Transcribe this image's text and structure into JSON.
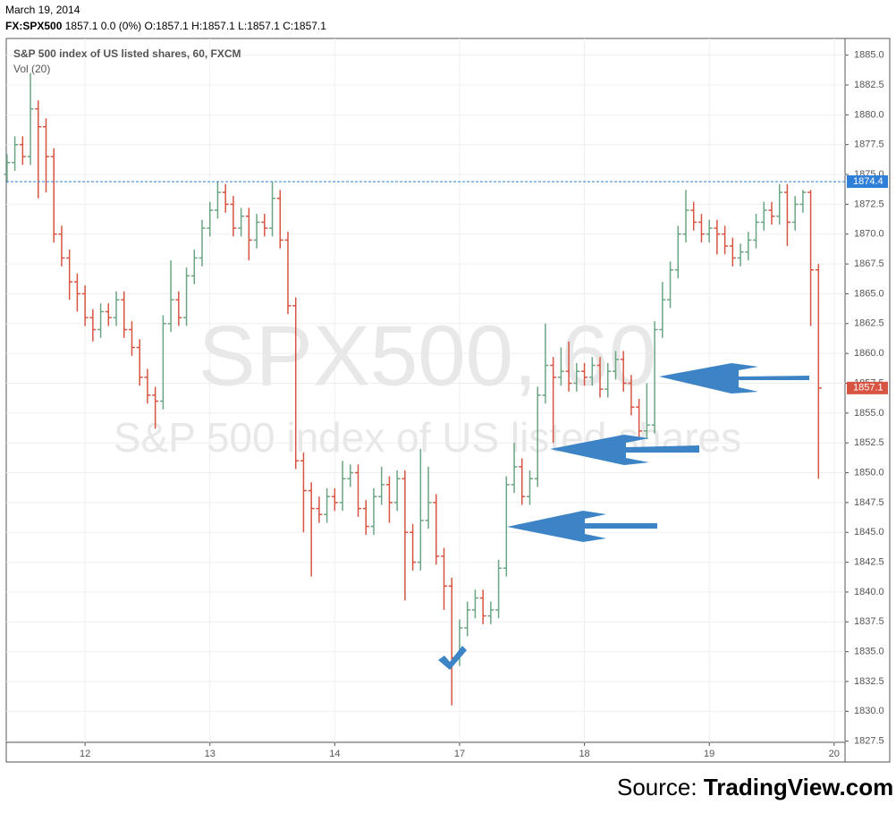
{
  "header": {
    "date": "March 19, 2014",
    "symbol": "FX:SPX500",
    "quote": "1857.1 0.0 (0%) O:1857.1 H:1857.1 L:1857.1 C:1857.1"
  },
  "source": {
    "prefix": "Source:",
    "site": "TradingView.com"
  },
  "chart_data": {
    "type": "ohlc",
    "title": "S&P 500 index of US listed shares, 60, FXCM",
    "indicator": "Vol (20)",
    "watermark": "SPX500, 60",
    "watermark_subtitle": "S&P 500 index of US listed shares",
    "up_color": "#6ba583",
    "down_color": "#d75442",
    "hline_color": "#2f7ed8",
    "hline": 1874.4,
    "grid": true,
    "x": [
      0,
      1,
      2,
      3,
      4,
      5,
      6,
      7,
      8,
      9,
      10,
      11,
      12,
      13,
      14,
      15,
      16,
      17,
      18,
      19,
      20,
      21,
      22,
      23,
      24,
      25,
      26,
      27,
      28,
      29,
      30,
      31,
      32,
      33,
      34,
      35,
      36,
      37,
      38,
      39,
      40,
      41,
      42,
      43,
      44,
      45,
      46,
      47,
      48,
      49,
      50,
      51,
      52,
      53,
      54,
      55,
      56,
      57,
      58,
      59,
      60,
      61,
      62,
      63,
      64,
      65,
      66,
      67,
      68,
      69,
      70,
      71,
      72,
      73,
      74,
      75,
      76,
      77,
      78,
      79,
      80,
      81,
      82,
      83,
      84,
      85,
      86,
      87,
      88,
      89,
      90,
      91,
      92,
      93,
      94,
      95,
      96,
      97,
      98,
      99,
      100,
      101,
      102,
      103,
      104
    ],
    "open": [
      1875.0,
      1876.0,
      1877.5,
      1876.5,
      1880.5,
      1879.0,
      1876.5,
      1870.0,
      1868.0,
      1866.0,
      1865.0,
      1863.0,
      1862.0,
      1863.5,
      1863.0,
      1864.5,
      1862.0,
      1860.5,
      1858.0,
      1856.5,
      1856.0,
      1862.5,
      1864.5,
      1863.0,
      1866.5,
      1868.0,
      1870.5,
      1872.0,
      1873.5,
      1872.5,
      1870.5,
      1871.5,
      1869.5,
      1871.0,
      1870.5,
      1873.0,
      1869.5,
      1864.0,
      1851.0,
      1848.5,
      1847.0,
      1846.5,
      1848.0,
      1847.5,
      1849.5,
      1850.0,
      1847.0,
      1845.5,
      1848.0,
      1849.0,
      1847.5,
      1849.5,
      1845.0,
      1842.5,
      1846.0,
      1847.5,
      1843.0,
      1840.5,
      1834.5,
      1837.0,
      1838.5,
      1839.5,
      1838.0,
      1838.5,
      1842.0,
      1849.0,
      1850.5,
      1848.0,
      1849.5,
      1856.5,
      1859.0,
      1858.0,
      1858.5,
      1857.5,
      1858.5,
      1858.0,
      1859.0,
      1857.0,
      1858.5,
      1859.5,
      1857.5,
      1855.5,
      1853.5,
      1854.0,
      1862.0,
      1864.5,
      1867.0,
      1870.0,
      1872.0,
      1871.0,
      1870.0,
      1870.5,
      1870.0,
      1869.0,
      1868.0,
      1868.5,
      1869.5,
      1871.0,
      1872.0,
      1871.5,
      1873.5,
      1871.0,
      1872.5,
      1873.5,
      1867.0
    ],
    "high": [
      1876.7,
      1878.2,
      1878.2,
      1883.5,
      1881.2,
      1879.7,
      1877.2,
      1870.7,
      1868.7,
      1866.7,
      1865.7,
      1863.7,
      1864.2,
      1864.2,
      1865.2,
      1865.2,
      1862.7,
      1861.2,
      1858.7,
      1857.2,
      1863.2,
      1867.8,
      1865.2,
      1867.2,
      1868.7,
      1871.2,
      1872.7,
      1874.4,
      1874.2,
      1873.2,
      1872.2,
      1872.2,
      1871.7,
      1871.7,
      1874.4,
      1873.7,
      1870.2,
      1864.7,
      1851.7,
      1849.2,
      1848.0,
      1848.7,
      1848.7,
      1851.0,
      1850.7,
      1850.7,
      1847.7,
      1848.7,
      1850.5,
      1849.7,
      1850.2,
      1850.2,
      1845.7,
      1852.0,
      1850.5,
      1848.2,
      1843.7,
      1841.2,
      1837.7,
      1839.2,
      1840.2,
      1840.2,
      1839.2,
      1842.7,
      1849.7,
      1852.5,
      1851.2,
      1850.2,
      1857.2,
      1862.5,
      1859.7,
      1860.5,
      1861.0,
      1859.2,
      1859.2,
      1859.7,
      1859.7,
      1859.2,
      1860.2,
      1860.2,
      1858.2,
      1856.2,
      1857.5,
      1862.7,
      1866.0,
      1867.7,
      1870.7,
      1873.7,
      1872.7,
      1871.7,
      1871.2,
      1871.2,
      1870.7,
      1869.7,
      1869.2,
      1870.2,
      1871.7,
      1872.7,
      1872.7,
      1874.2,
      1874.2,
      1873.2,
      1873.7,
      1873.7,
      1867.5
    ],
    "low": [
      1874.3,
      1875.3,
      1875.8,
      1875.8,
      1873.0,
      1873.5,
      1869.3,
      1867.3,
      1864.5,
      1863.5,
      1862.3,
      1861.0,
      1861.3,
      1862.3,
      1862.3,
      1861.3,
      1859.8,
      1857.3,
      1855.8,
      1853.7,
      1855.3,
      1861.8,
      1862.3,
      1862.3,
      1865.8,
      1867.3,
      1869.8,
      1871.3,
      1871.8,
      1869.8,
      1869.8,
      1867.8,
      1868.8,
      1869.8,
      1869.8,
      1868.8,
      1863.3,
      1850.3,
      1845.0,
      1841.3,
      1845.8,
      1845.8,
      1846.8,
      1846.8,
      1848.8,
      1846.3,
      1844.8,
      1844.8,
      1847.3,
      1845.8,
      1846.8,
      1839.3,
      1841.8,
      1841.8,
      1845.3,
      1842.3,
      1838.5,
      1830.5,
      1833.8,
      1836.3,
      1837.8,
      1837.3,
      1837.3,
      1837.8,
      1841.3,
      1848.3,
      1847.3,
      1847.3,
      1848.8,
      1855.8,
      1852.5,
      1857.3,
      1856.8,
      1856.8,
      1857.3,
      1857.3,
      1856.3,
      1856.3,
      1857.8,
      1856.8,
      1854.8,
      1852.8,
      1852.8,
      1853.3,
      1861.3,
      1863.8,
      1866.3,
      1869.3,
      1870.3,
      1869.3,
      1869.3,
      1868.3,
      1868.3,
      1867.3,
      1867.3,
      1867.8,
      1868.8,
      1870.3,
      1870.8,
      1870.8,
      1869.0,
      1870.3,
      1871.8,
      1862.3,
      1849.5
    ],
    "close": [
      1876.0,
      1877.5,
      1876.5,
      1880.5,
      1879.0,
      1876.5,
      1870.0,
      1868.0,
      1866.0,
      1865.0,
      1863.0,
      1862.0,
      1863.5,
      1863.0,
      1864.5,
      1862.0,
      1860.5,
      1858.0,
      1856.5,
      1856.0,
      1862.5,
      1864.5,
      1863.0,
      1866.5,
      1868.0,
      1870.5,
      1872.0,
      1873.5,
      1872.5,
      1870.5,
      1871.5,
      1869.5,
      1871.0,
      1870.5,
      1873.0,
      1869.5,
      1864.0,
      1851.0,
      1848.5,
      1847.0,
      1846.5,
      1848.0,
      1847.5,
      1849.5,
      1850.0,
      1847.0,
      1845.5,
      1848.0,
      1849.0,
      1847.5,
      1849.5,
      1845.0,
      1842.5,
      1846.0,
      1847.5,
      1843.0,
      1840.5,
      1834.5,
      1837.0,
      1838.5,
      1839.5,
      1838.0,
      1838.5,
      1842.0,
      1849.0,
      1850.5,
      1848.0,
      1849.5,
      1856.5,
      1859.0,
      1858.0,
      1858.5,
      1857.5,
      1858.5,
      1858.0,
      1859.0,
      1857.0,
      1858.5,
      1859.5,
      1857.5,
      1855.5,
      1853.5,
      1854.0,
      1862.0,
      1864.5,
      1867.0,
      1870.0,
      1872.0,
      1871.0,
      1870.0,
      1870.5,
      1870.0,
      1869.0,
      1868.0,
      1868.5,
      1869.5,
      1871.0,
      1872.0,
      1871.5,
      1873.5,
      1871.0,
      1872.5,
      1873.5,
      1867.0,
      1857.1
    ],
    "xlim": [
      -0.1,
      107.4
    ],
    "xticks": [
      {
        "value": 10,
        "label": "12"
      },
      {
        "value": 26,
        "label": "13"
      },
      {
        "value": 42,
        "label": "14"
      },
      {
        "value": 58,
        "label": "17"
      },
      {
        "value": 74,
        "label": "18"
      },
      {
        "value": 90,
        "label": "19"
      },
      {
        "value": 106,
        "label": "20"
      }
    ],
    "ylim": [
      1827.4,
      1886.4
    ],
    "yticks": [
      1827.5,
      {
        "value": 1830,
        "label": "1830.0"
      },
      1832.5,
      {
        "value": 1835,
        "label": "1835.0"
      },
      1837.5,
      {
        "value": 1840,
        "label": "1840.0"
      },
      1842.5,
      {
        "value": 1845,
        "label": "1845.0"
      },
      1847.5,
      {
        "value": 1850,
        "label": "1850.0"
      },
      1852.5,
      {
        "value": 1855,
        "label": "1855.0"
      },
      1857.5,
      {
        "value": 1860,
        "label": "1860.0"
      },
      1862.5,
      {
        "value": 1865,
        "label": "1865.0"
      },
      1867.5,
      {
        "value": 1870,
        "label": "1870.0"
      },
      1872.5,
      {
        "value": 1875,
        "label": "1875.0"
      },
      1877.5,
      {
        "value": 1880,
        "label": "1880.0"
      },
      1882.5,
      {
        "value": 1885,
        "label": "1885.0"
      }
    ]
  }
}
